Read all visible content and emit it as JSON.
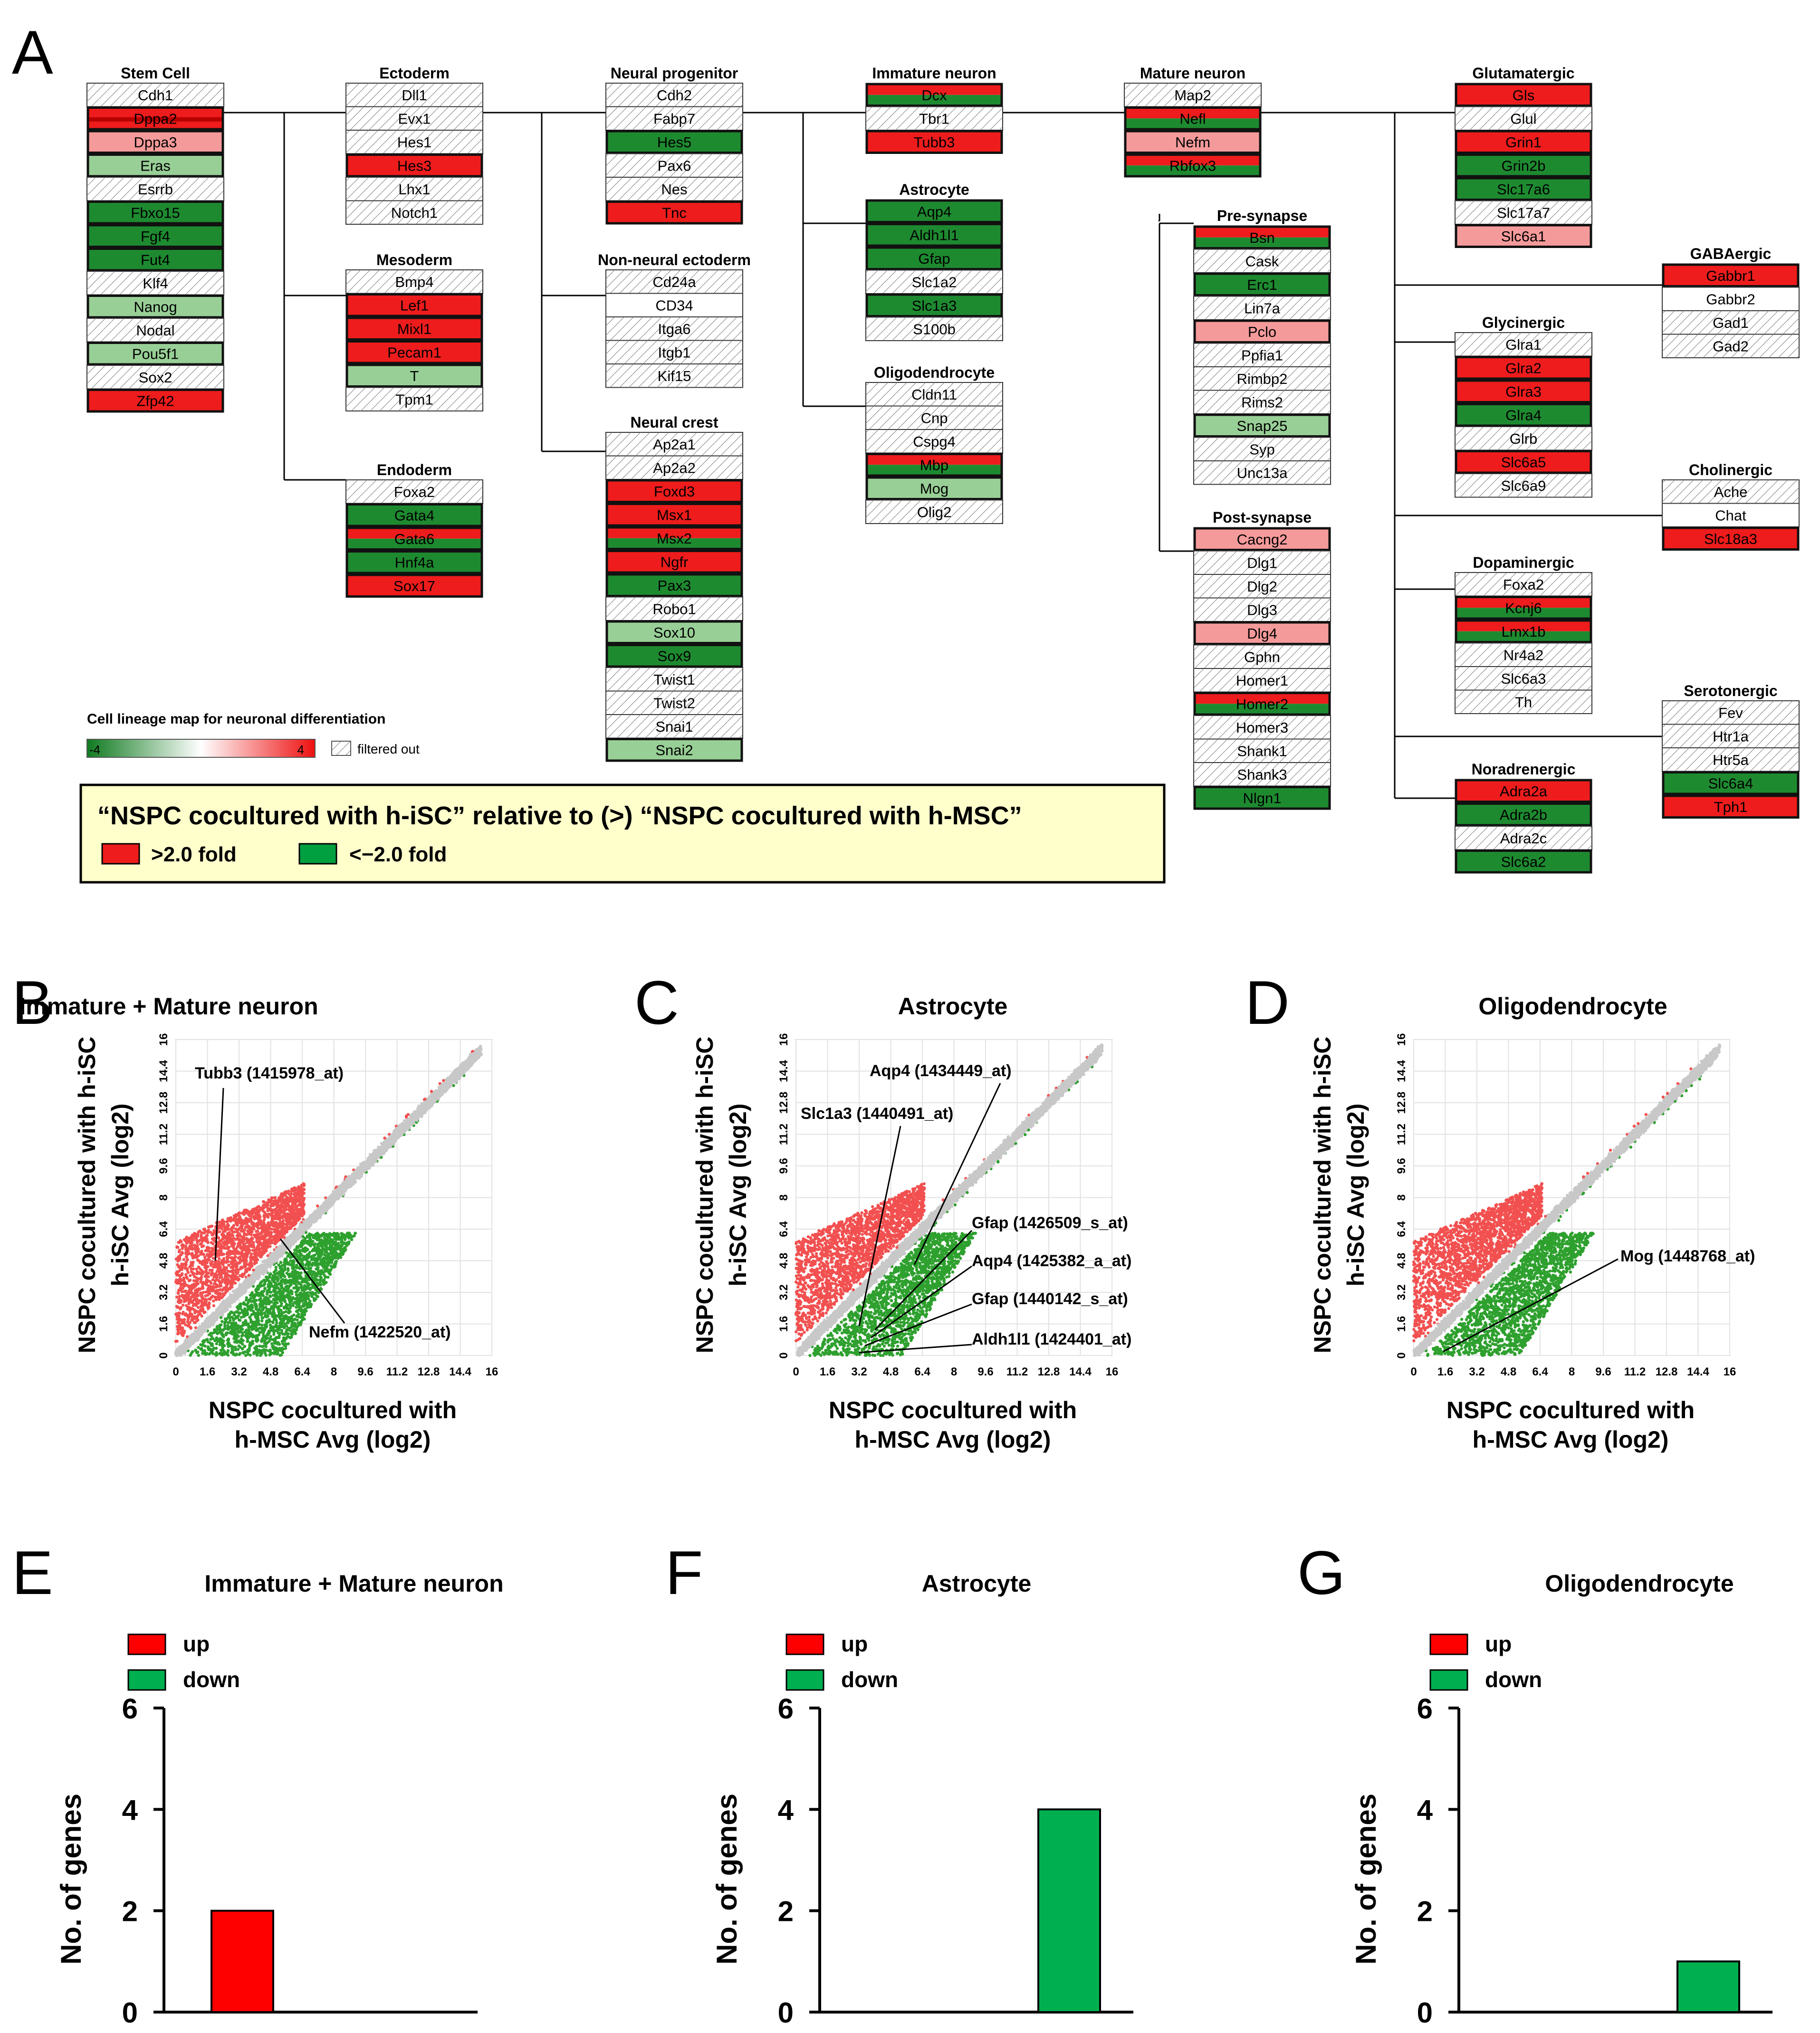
{
  "colors": {
    "up": "#ee1c1c",
    "up_light": "#f59a9a",
    "down": "#1e8a30",
    "down_light": "#98cf96",
    "bar_red": "#ff0000",
    "bar_green": "#00b050",
    "legend_bg": "#ffffcc",
    "scatter_up": "#f25050",
    "scatter_down": "#2ea02e",
    "scatter_mid": "#c8c8c8"
  },
  "panel_letters": [
    "A",
    "B",
    "C",
    "D",
    "E",
    "F",
    "G"
  ],
  "lineage_map": {
    "legend_title": "Cell lineage map for neuronal differentiation",
    "scale_min": "-4",
    "scale_max": "4",
    "filtered_label": "filtered out",
    "comparison_text": "“NSPC cocultured with h-iSC” relative to (>) “NSPC cocultured with h-MSC”",
    "up_label": ">2.0 fold",
    "down_label": "<−2.0 fold",
    "groups": [
      {
        "title": "Stem Cell",
        "genes": [
          [
            "Cdh1",
            "f"
          ],
          [
            "Dppa2",
            "RR"
          ],
          [
            "Dppa3",
            "r"
          ],
          [
            "Eras",
            "g"
          ],
          [
            "Esrrb",
            "f"
          ],
          [
            "Fbxo15",
            "G"
          ],
          [
            "Fgf4",
            "G"
          ],
          [
            "Fut4",
            "G"
          ],
          [
            "Klf4",
            "f"
          ],
          [
            "Nanog",
            "g"
          ],
          [
            "Nodal",
            "f"
          ],
          [
            "Pou5f1",
            "g"
          ],
          [
            "Sox2",
            "f"
          ],
          [
            "Zfp42",
            "R"
          ]
        ]
      },
      {
        "title": "Ectoderm",
        "genes": [
          [
            "Dll1",
            "f"
          ],
          [
            "Evx1",
            "f"
          ],
          [
            "Hes1",
            "f"
          ],
          [
            "Hes3",
            "R"
          ],
          [
            "Lhx1",
            "f"
          ],
          [
            "Notch1",
            "f"
          ]
        ]
      },
      {
        "title": "Mesoderm",
        "genes": [
          [
            "Bmp4",
            "f"
          ],
          [
            "Lef1",
            "R"
          ],
          [
            "Mixl1",
            "R"
          ],
          [
            "Pecam1",
            "R"
          ],
          [
            "T",
            "g"
          ],
          [
            "Tpm1",
            "f"
          ]
        ]
      },
      {
        "title": "Endoderm",
        "genes": [
          [
            "Foxa2",
            "f"
          ],
          [
            "Gata4",
            "G"
          ],
          [
            "Gata6",
            "mix"
          ],
          [
            "Hnf4a",
            "G"
          ],
          [
            "Sox17",
            "R"
          ]
        ]
      },
      {
        "title": "Neural progenitor",
        "genes": [
          [
            "Cdh2",
            "f"
          ],
          [
            "Fabp7",
            "f"
          ],
          [
            "Hes5",
            "G"
          ],
          [
            "Pax6",
            "f"
          ],
          [
            "Nes",
            "f"
          ],
          [
            "Tnc",
            "R"
          ]
        ]
      },
      {
        "title": "Non-neural ectoderm",
        "genes": [
          [
            "Cd24a",
            "f"
          ],
          [
            "CD34",
            "w"
          ],
          [
            "Itga6",
            "f"
          ],
          [
            "Itgb1",
            "f"
          ],
          [
            "Kif15",
            "f"
          ]
        ]
      },
      {
        "title": "Neural crest",
        "genes": [
          [
            "Ap2a1",
            "f"
          ],
          [
            "Ap2a2",
            "f"
          ],
          [
            "Foxd3",
            "R"
          ],
          [
            "Msx1",
            "R"
          ],
          [
            "Msx2",
            "mix"
          ],
          [
            "Ngfr",
            "R"
          ],
          [
            "Pax3",
            "G"
          ],
          [
            "Robo1",
            "f"
          ],
          [
            "Sox10",
            "g"
          ],
          [
            "Sox9",
            "G"
          ],
          [
            "Twist1",
            "f"
          ],
          [
            "Twist2",
            "f"
          ],
          [
            "Snai1",
            "f"
          ],
          [
            "Snai2",
            "g"
          ]
        ]
      },
      {
        "title": "Immature neuron",
        "genes": [
          [
            "Dcx",
            "mix"
          ],
          [
            "Tbr1",
            "f"
          ],
          [
            "Tubb3",
            "R"
          ]
        ]
      },
      {
        "title": "Astrocyte",
        "genes": [
          [
            "Aqp4",
            "G"
          ],
          [
            "Aldh1l1",
            "G"
          ],
          [
            "Gfap",
            "G"
          ],
          [
            "Slc1a2",
            "f"
          ],
          [
            "Slc1a3",
            "G"
          ],
          [
            "S100b",
            "f"
          ]
        ]
      },
      {
        "title": "Oligodendrocyte",
        "genes": [
          [
            "Cldn11",
            "f"
          ],
          [
            "Cnp",
            "f"
          ],
          [
            "Cspg4",
            "f"
          ],
          [
            "Mbp",
            "mix"
          ],
          [
            "Mog",
            "g"
          ],
          [
            "Olig2",
            "f"
          ]
        ]
      },
      {
        "title": "Mature neuron",
        "genes": [
          [
            "Map2",
            "f"
          ],
          [
            "Nefl",
            "mix"
          ],
          [
            "Nefm",
            "r"
          ],
          [
            "Rbfox3",
            "mix"
          ]
        ]
      },
      {
        "title": "Pre-synapse",
        "genes": [
          [
            "Bsn",
            "mix"
          ],
          [
            "Cask",
            "f"
          ],
          [
            "Erc1",
            "G"
          ],
          [
            "Lin7a",
            "f"
          ],
          [
            "Pclo",
            "r"
          ],
          [
            "Ppfia1",
            "f"
          ],
          [
            "Rimbp2",
            "f"
          ],
          [
            "Rims2",
            "f"
          ],
          [
            "Snap25",
            "g"
          ],
          [
            "Syp",
            "f"
          ],
          [
            "Unc13a",
            "f"
          ]
        ]
      },
      {
        "title": "Post-synapse",
        "genes": [
          [
            "Cacng2",
            "r"
          ],
          [
            "Dlg1",
            "f"
          ],
          [
            "Dlg2",
            "f"
          ],
          [
            "Dlg3",
            "f"
          ],
          [
            "Dlg4",
            "r"
          ],
          [
            "Gphn",
            "f"
          ],
          [
            "Homer1",
            "f"
          ],
          [
            "Homer2",
            "mix"
          ],
          [
            "Homer3",
            "f"
          ],
          [
            "Shank1",
            "f"
          ],
          [
            "Shank3",
            "f"
          ],
          [
            "Nlgn1",
            "G"
          ]
        ]
      },
      {
        "title": "Glutamatergic",
        "genes": [
          [
            "Gls",
            "R"
          ],
          [
            "Glul",
            "f"
          ],
          [
            "Grin1",
            "R"
          ],
          [
            "Grin2b",
            "G"
          ],
          [
            "Slc17a6",
            "G"
          ],
          [
            "Slc17a7",
            "f"
          ],
          [
            "Slc6a1",
            "r"
          ]
        ]
      },
      {
        "title": "GABAergic",
        "genes": [
          [
            "Gabbr1",
            "R"
          ],
          [
            "Gabbr2",
            "w"
          ],
          [
            "Gad1",
            "f"
          ],
          [
            "Gad2",
            "f"
          ]
        ]
      },
      {
        "title": "Glycinergic",
        "genes": [
          [
            "Glra1",
            "f"
          ],
          [
            "Glra2",
            "R"
          ],
          [
            "Glra3",
            "R"
          ],
          [
            "Glra4",
            "G"
          ],
          [
            "Glrb",
            "f"
          ],
          [
            "Slc6a5",
            "R"
          ],
          [
            "Slc6a9",
            "f"
          ]
        ]
      },
      {
        "title": "Cholinergic",
        "genes": [
          [
            "Ache",
            "f"
          ],
          [
            "Chat",
            "w"
          ],
          [
            "Slc18a3",
            "R"
          ]
        ]
      },
      {
        "title": "Dopaminergic",
        "genes": [
          [
            "Foxa2",
            "f"
          ],
          [
            "Kcnj6",
            "mix"
          ],
          [
            "Lmx1b",
            "mix"
          ],
          [
            "Nr4a2",
            "f"
          ],
          [
            "Slc6a3",
            "f"
          ],
          [
            "Th",
            "f"
          ]
        ]
      },
      {
        "title": "Serotonergic",
        "genes": [
          [
            "Fev",
            "f"
          ],
          [
            "Htr1a",
            "f"
          ],
          [
            "Htr5a",
            "f"
          ],
          [
            "Slc6a4",
            "G"
          ],
          [
            "Tph1",
            "R"
          ]
        ]
      },
      {
        "title": "Noradrenergic",
        "genes": [
          [
            "Adra2a",
            "R"
          ],
          [
            "Adra2b",
            "G"
          ],
          [
            "Adra2c",
            "f"
          ],
          [
            "Slc6a2",
            "G"
          ]
        ]
      }
    ]
  },
  "chart_data": [
    {
      "type": "scatter",
      "panel": "B",
      "title": "Immature + Mature neuron",
      "xlabel": "NSPC cocultured with h-MSC  Avg (log2)",
      "ylabel": "NSPC cocultured with h-iSC  Avg (log2)",
      "xlim": [
        0,
        16
      ],
      "ylim": [
        0,
        16
      ],
      "ticks": [
        "0",
        "1.6",
        "3.2",
        "4.8",
        "6.4",
        "8",
        "9.6",
        "11.2",
        "12.8",
        "14.4",
        "16"
      ],
      "annotations": [
        {
          "text": "Tubb3 (1415978_at)",
          "x": 2.0,
          "y": 4.8
        },
        {
          "text": "Nefm (1422520_at)",
          "x": 5.3,
          "y": 5.9
        }
      ]
    },
    {
      "type": "scatter",
      "panel": "C",
      "title": "Astrocyte",
      "xlabel": "NSPC cocultured with h-MSC  Avg (log2)",
      "ylabel": "NSPC cocultured with h-iSC  Avg (log2)",
      "xlim": [
        0,
        16
      ],
      "ylim": [
        0,
        16
      ],
      "ticks": [
        "0",
        "1.6",
        "3.2",
        "4.8",
        "6.4",
        "8",
        "9.6",
        "11.2",
        "12.8",
        "14.4",
        "16"
      ],
      "annotations": [
        {
          "text": "Aqp4 (1434449_at)",
          "x": 6.0,
          "y": 4.6
        },
        {
          "text": "Slc1a3 (1440491_at)",
          "x": 3.2,
          "y": 1.5
        },
        {
          "text": "Gfap (1426509_s_at)",
          "x": 4.0,
          "y": 1.3
        },
        {
          "text": "Aqp4 (1425382_a_at)",
          "x": 3.8,
          "y": 0.9
        },
        {
          "text": "Gfap (1440142_s_at)",
          "x": 3.5,
          "y": 0.5
        },
        {
          "text": "Aldh1l1 (1424401_at)",
          "x": 3.2,
          "y": 0.15
        }
      ]
    },
    {
      "type": "scatter",
      "panel": "D",
      "title": "Oligodendrocyte",
      "xlabel": "NSPC cocultured with h-MSC  Avg (log2)",
      "ylabel": "NSPC cocultured with h-iSC  Avg (log2)",
      "xlim": [
        0,
        16
      ],
      "ylim": [
        0,
        16
      ],
      "ticks": [
        "0",
        "1.6",
        "3.2",
        "4.8",
        "6.4",
        "8",
        "9.6",
        "11.2",
        "12.8",
        "14.4",
        "16"
      ],
      "annotations": [
        {
          "text": "Mog (1448768_at)",
          "x": 1.5,
          "y": 0.2
        }
      ]
    },
    {
      "type": "bar",
      "panel": "E",
      "title": "Immature + Mature neuron",
      "ylabel": "No. of genes",
      "categories": [
        "up",
        "down"
      ],
      "values": [
        2,
        0
      ],
      "ylim": [
        0,
        6
      ],
      "yticks": [
        "0",
        "2",
        "4",
        "6"
      ],
      "legend": [
        "up",
        "down"
      ]
    },
    {
      "type": "bar",
      "panel": "F",
      "title": "Astrocyte",
      "ylabel": "No. of genes",
      "categories": [
        "up",
        "down"
      ],
      "values": [
        0,
        4
      ],
      "ylim": [
        0,
        6
      ],
      "yticks": [
        "0",
        "2",
        "4",
        "6"
      ],
      "legend": [
        "up",
        "down"
      ]
    },
    {
      "type": "bar",
      "panel": "G",
      "title": "Oligodendrocyte",
      "ylabel": "No. of genes",
      "categories": [
        "up",
        "down"
      ],
      "values": [
        0,
        1
      ],
      "ylim": [
        0,
        6
      ],
      "yticks": [
        "0",
        "2",
        "4",
        "6"
      ],
      "legend": [
        "up",
        "down"
      ]
    }
  ]
}
